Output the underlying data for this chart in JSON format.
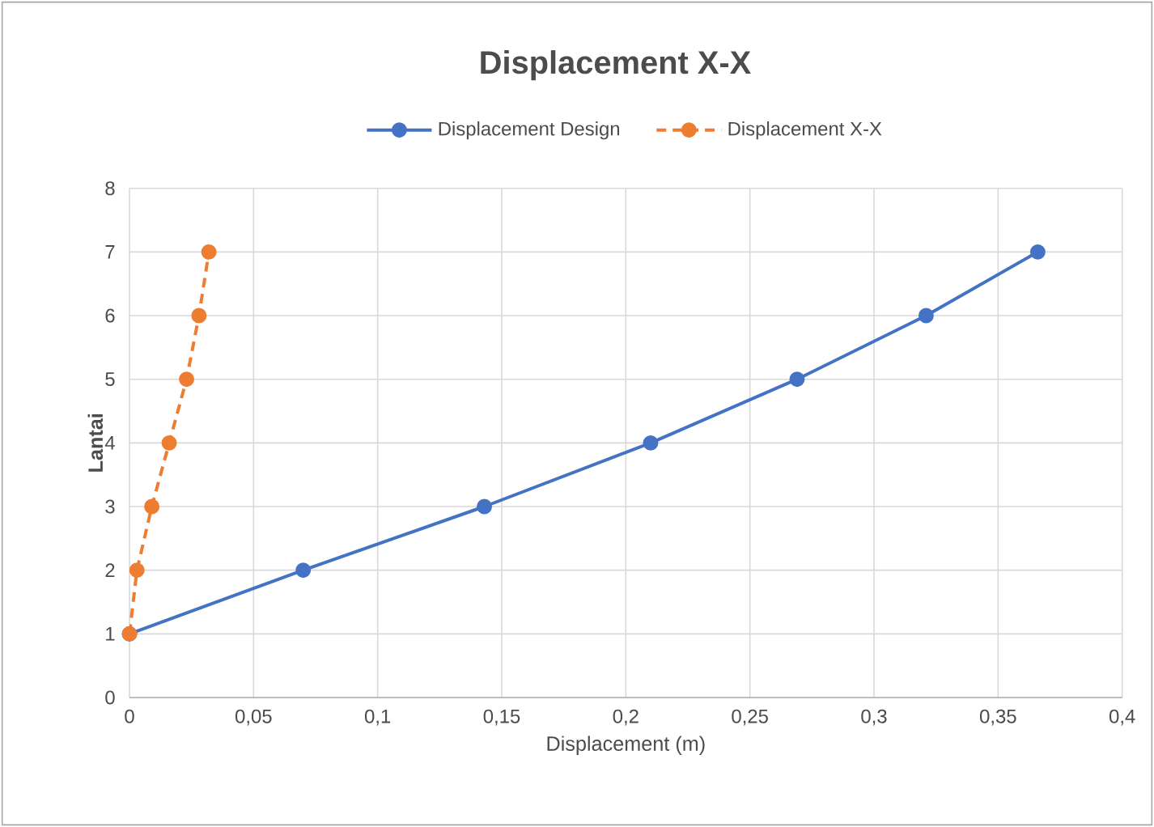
{
  "chart_data": {
    "type": "line",
    "title": "Displacement X-X",
    "xlabel": "Displacement (m)",
    "ylabel": "Lantai",
    "xlim": [
      0,
      0.4
    ],
    "ylim": [
      0,
      8
    ],
    "xticks": [
      0,
      {
        "value": 0.05,
        "label": "0,05"
      },
      {
        "value": 0.1,
        "label": "0,1"
      },
      {
        "value": 0.15,
        "label": "0,15"
      },
      {
        "value": 0.2,
        "label": "0,2"
      },
      {
        "value": 0.25,
        "label": "0,25"
      },
      {
        "value": 0.3,
        "label": "0,3"
      },
      {
        "value": 0.35,
        "label": "0,35"
      },
      {
        "value": 0.4,
        "label": "0,4"
      }
    ],
    "yticks": [
      0,
      1,
      2,
      3,
      4,
      5,
      6,
      7,
      8
    ],
    "grid": true,
    "legend": "top",
    "marker": "circle",
    "series": [
      {
        "name": "Displacement Design",
        "color": "#4472c4",
        "line_style": "solid",
        "x": [
          0,
          0.07,
          0.143,
          0.21,
          0.269,
          0.321,
          0.366
        ],
        "values": [
          1,
          2,
          3,
          4,
          5,
          6,
          7
        ]
      },
      {
        "name": "Displacement X-X",
        "color": "#ed7d31",
        "line_style": "dashed",
        "x": [
          0,
          0.003,
          0.009,
          0.016,
          0.023,
          0.028,
          0.032
        ],
        "values": [
          1,
          2,
          3,
          4,
          5,
          6,
          7
        ]
      }
    ]
  }
}
